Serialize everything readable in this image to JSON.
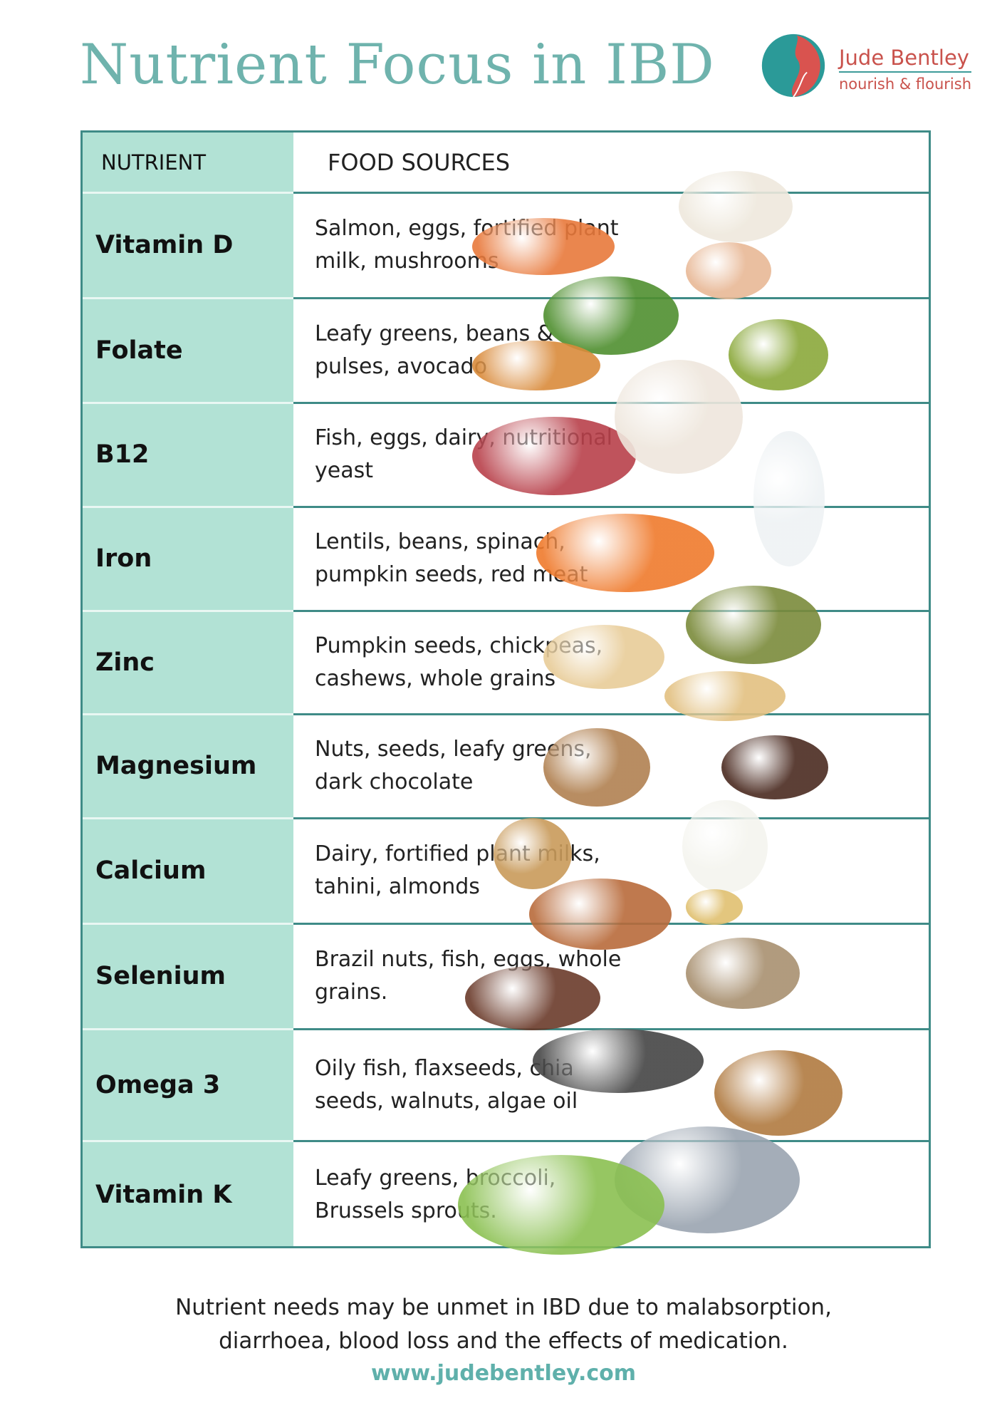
{
  "title": "Nutrient Focus in IBD",
  "logo": {
    "name": "Jude Bentley",
    "tagline": "nourish & flourish"
  },
  "colors": {
    "title": "#6fb3ad",
    "nutrient_column": "#b2e2d5",
    "border": "#3f8b87",
    "logo_red": "#c9524c",
    "logo_teal": "#2b9a98"
  },
  "table": {
    "headers": {
      "nutrient": "NUTRIENT",
      "sources": "FOOD SOURCES"
    },
    "rows": [
      {
        "nutrient": "Vitamin D",
        "sources": "Salmon, eggs, fortified plant milk, mushrooms"
      },
      {
        "nutrient": "Folate",
        "sources": "Leafy greens, beans & pulses, avocado"
      },
      {
        "nutrient": "B12",
        "sources": "Fish, eggs, dairy, nutritional yeast"
      },
      {
        "nutrient": "Iron",
        "sources": "Lentils, beans, spinach, pumpkin seeds, red meat"
      },
      {
        "nutrient": "Zinc",
        "sources": "Pumpkin seeds, chickpeas, cashews, whole grains"
      },
      {
        "nutrient": "Magnesium",
        "sources": "Nuts, seeds, leafy greens, dark chocolate"
      },
      {
        "nutrient": "Calcium",
        "sources": "Dairy, fortified plant milks, tahini, almonds"
      },
      {
        "nutrient": "Selenium",
        "sources": "Brazil nuts, fish, eggs, whole grains."
      },
      {
        "nutrient": "Omega 3",
        "sources": "Oily fish, flaxseeds, chia seeds, walnuts, algae oil"
      },
      {
        "nutrient": "Vitamin K",
        "sources": "Leafy greens, broccoli, Brussels sprouts."
      }
    ]
  },
  "footer": {
    "line1": "Nutrient needs may be unmet in IBD due to malabsorption,",
    "line2": "diarrhoea, blood loss and the effects of medication.",
    "url": "www.judebentley.com"
  }
}
